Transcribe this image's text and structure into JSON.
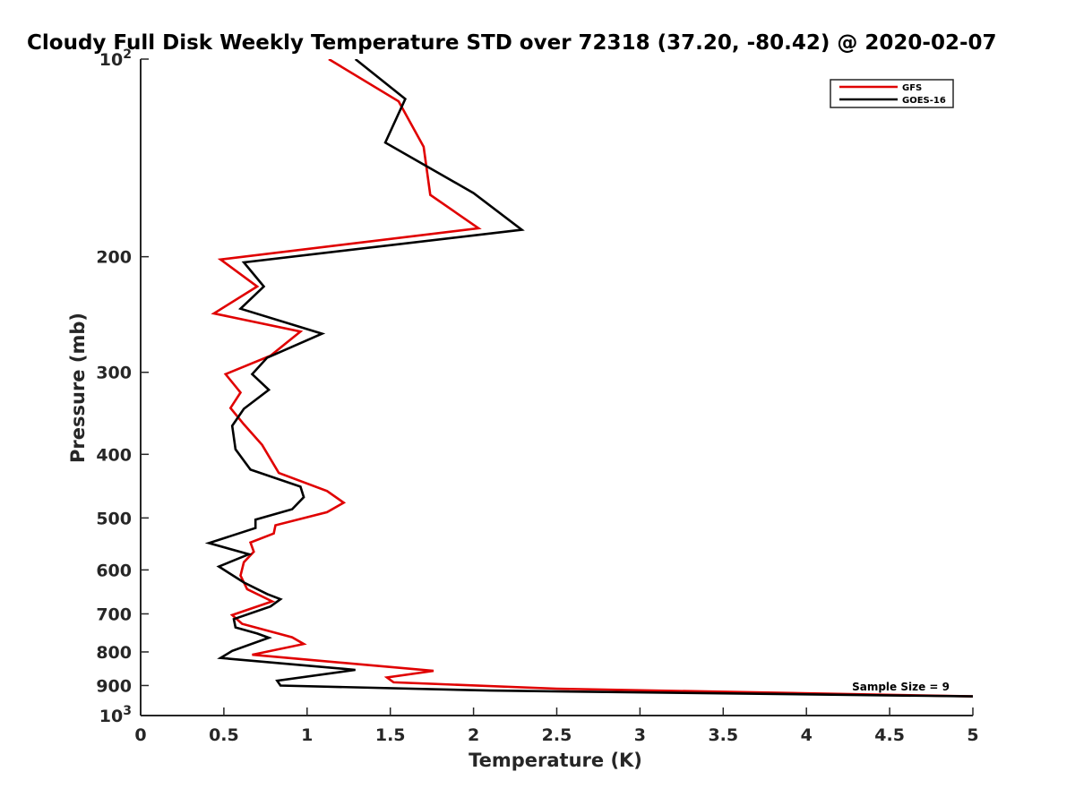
{
  "chart_data": {
    "type": "line",
    "title": "Cloudy Full Disk Weekly Temperature STD over 72318 (37.20, -80.42) @ 2020-02-07",
    "xlabel": "Temperature (K)",
    "ylabel": "Pressure (mb)",
    "xlim": [
      0,
      5
    ],
    "ylim": [
      100,
      1000
    ],
    "yscale": "log",
    "y_reversed": true,
    "grid": false,
    "legend_position": "top-right",
    "x_ticks": [
      0,
      0.5,
      1,
      1.5,
      2,
      2.5,
      3,
      3.5,
      4,
      4.5,
      5
    ],
    "x_tick_labels": [
      "0",
      "0.5",
      "1",
      "1.5",
      "2",
      "2.5",
      "3",
      "3.5",
      "4",
      "4.5",
      "5"
    ],
    "y_ticks": [
      100,
      200,
      300,
      400,
      500,
      600,
      700,
      800,
      900,
      1000
    ],
    "y_tick_labels": [
      {
        "base": "10",
        "exp": "2"
      },
      {
        "base": "200",
        "exp": ""
      },
      {
        "base": "300",
        "exp": ""
      },
      {
        "base": "400",
        "exp": ""
      },
      {
        "base": "500",
        "exp": ""
      },
      {
        "base": "600",
        "exp": ""
      },
      {
        "base": "700",
        "exp": ""
      },
      {
        "base": "800",
        "exp": ""
      },
      {
        "base": "900",
        "exp": ""
      },
      {
        "base": "10",
        "exp": "3"
      }
    ],
    "annotation": "Sample Size = 9",
    "series": [
      {
        "name": "GFS",
        "color": "#e00000",
        "points": [
          [
            1.13,
            100
          ],
          [
            1.55,
            116
          ],
          [
            1.7,
            136
          ],
          [
            1.74,
            161
          ],
          [
            2.03,
            181
          ],
          [
            0.48,
            202
          ],
          [
            0.7,
            222
          ],
          [
            0.44,
            244
          ],
          [
            0.96,
            260
          ],
          [
            0.78,
            283
          ],
          [
            0.51,
            302
          ],
          [
            0.6,
            322
          ],
          [
            0.54,
            340
          ],
          [
            0.62,
            360
          ],
          [
            0.73,
            387
          ],
          [
            0.83,
            427
          ],
          [
            1.12,
            455
          ],
          [
            1.22,
            474
          ],
          [
            1.12,
            490
          ],
          [
            0.81,
            513
          ],
          [
            0.8,
            528
          ],
          [
            0.66,
            545
          ],
          [
            0.68,
            563
          ],
          [
            0.62,
            584
          ],
          [
            0.6,
            612
          ],
          [
            0.64,
            642
          ],
          [
            0.79,
            670
          ],
          [
            0.55,
            703
          ],
          [
            0.61,
            725
          ],
          [
            0.91,
            760
          ],
          [
            0.98,
            778
          ],
          [
            0.67,
            808
          ],
          [
            1.76,
            855
          ],
          [
            1.48,
            875
          ],
          [
            1.52,
            890
          ],
          [
            2.5,
            910
          ],
          [
            5.0,
            935
          ]
        ]
      },
      {
        "name": "GOES-16",
        "color": "#000000",
        "points": [
          [
            1.29,
            100
          ],
          [
            1.59,
            115
          ],
          [
            1.47,
            134
          ],
          [
            2.0,
            160
          ],
          [
            2.29,
            182
          ],
          [
            0.62,
            204
          ],
          [
            0.74,
            222
          ],
          [
            0.6,
            240
          ],
          [
            1.09,
            262
          ],
          [
            0.76,
            285
          ],
          [
            0.67,
            302
          ],
          [
            0.77,
            319
          ],
          [
            0.62,
            341
          ],
          [
            0.55,
            362
          ],
          [
            0.57,
            393
          ],
          [
            0.66,
            422
          ],
          [
            0.96,
            448
          ],
          [
            0.98,
            465
          ],
          [
            0.91,
            485
          ],
          [
            0.69,
            503
          ],
          [
            0.69,
            518
          ],
          [
            0.41,
            546
          ],
          [
            0.65,
            568
          ],
          [
            0.47,
            593
          ],
          [
            0.62,
            627
          ],
          [
            0.76,
            653
          ],
          [
            0.84,
            665
          ],
          [
            0.78,
            682
          ],
          [
            0.56,
            713
          ],
          [
            0.57,
            734
          ],
          [
            0.7,
            750
          ],
          [
            0.77,
            761
          ],
          [
            0.55,
            797
          ],
          [
            0.48,
            817
          ],
          [
            1.29,
            852
          ],
          [
            0.82,
            885
          ],
          [
            0.84,
            900
          ],
          [
            2.1,
            916
          ],
          [
            5.0,
            935
          ]
        ]
      }
    ]
  }
}
